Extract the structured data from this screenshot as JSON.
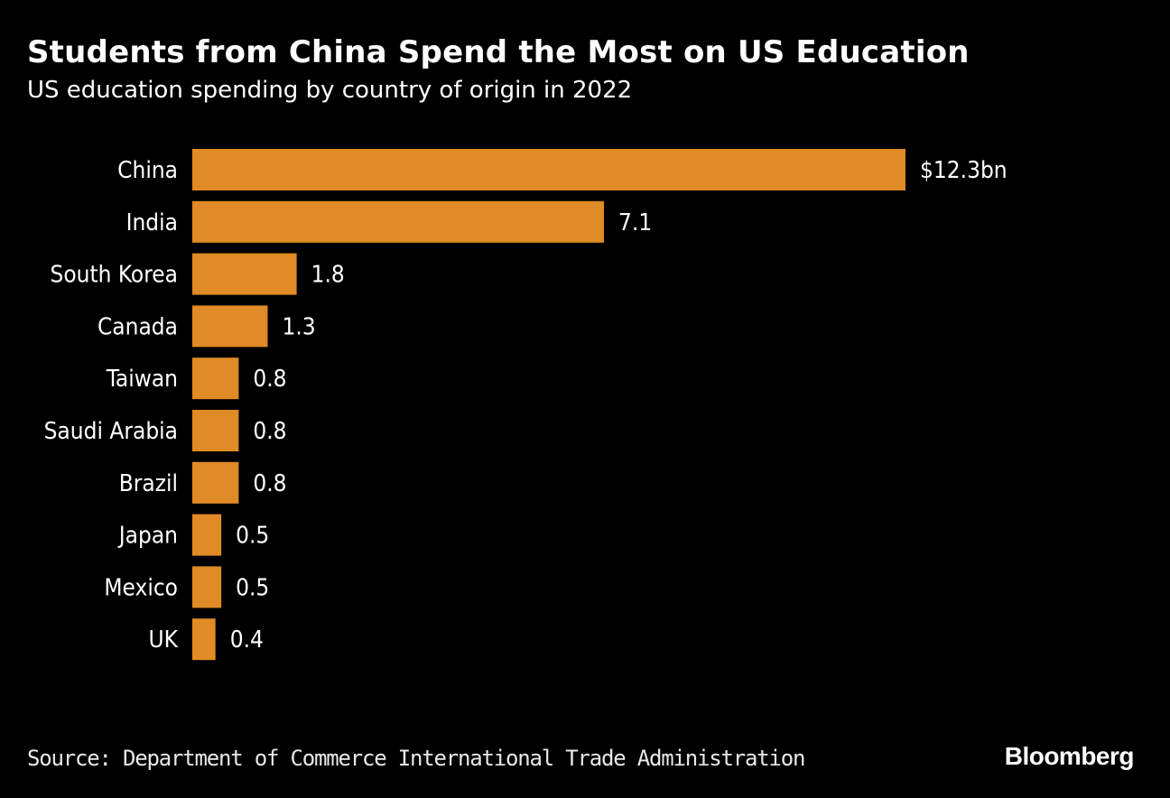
{
  "title": "Students from China Spend the Most on US Education",
  "subtitle": "US education spending by country of origin in 2022",
  "source": "Source: Department of Commerce International Trade Administration",
  "brand": "Bloomberg",
  "colors": {
    "background": "#000000",
    "bar": "#e08b25",
    "text": "#ffffff"
  },
  "chart_data": {
    "type": "bar",
    "orientation": "horizontal",
    "title": "Students from China Spend the Most on US Education",
    "subtitle": "US education spending by country of origin in 2022",
    "xlabel": "",
    "ylabel": "",
    "unit": "$bn",
    "categories": [
      "China",
      "India",
      "South Korea",
      "Canada",
      "Taiwan",
      "Saudi Arabia",
      "Brazil",
      "Japan",
      "Mexico",
      "UK"
    ],
    "values": [
      12.3,
      7.1,
      1.8,
      1.3,
      0.8,
      0.8,
      0.8,
      0.5,
      0.5,
      0.4
    ],
    "value_labels": [
      "$12.3bn",
      "7.1",
      "1.8",
      "1.3",
      "0.8",
      "0.8",
      "0.8",
      "0.5",
      "0.5",
      "0.4"
    ],
    "xlim": [
      0,
      12.3
    ],
    "grid": false,
    "legend": "none"
  }
}
